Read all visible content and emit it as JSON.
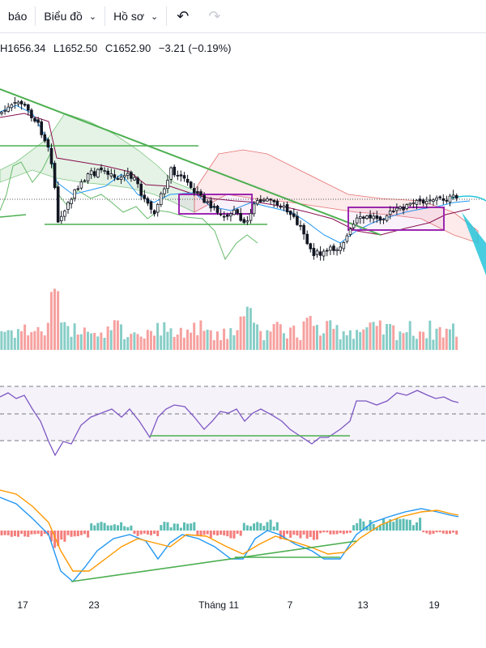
{
  "toolbar": {
    "alert_label": "báo",
    "chart_menu_label": "Biểu đồ",
    "profile_menu_label": "Hồ sơ"
  },
  "legend": {
    "high": "H1656.34",
    "low": "L1652.50",
    "close": "C1652.90",
    "change": "−3.21 (−0.19%)"
  },
  "colors": {
    "up": "#26a69a",
    "down": "#ef5350",
    "trend": "#4caf50",
    "box": "#9c27b0",
    "rsi_band": "#7e57c2",
    "macd": "#2196f3",
    "signal": "#ff9800"
  },
  "chart_data": {
    "type": "candlestick",
    "x_ticks": [
      "17",
      "23",
      "Tháng 11",
      "7",
      "13",
      "19"
    ],
    "panels": [
      "price",
      "volume",
      "rsi",
      "macd"
    ],
    "grid": false
  }
}
